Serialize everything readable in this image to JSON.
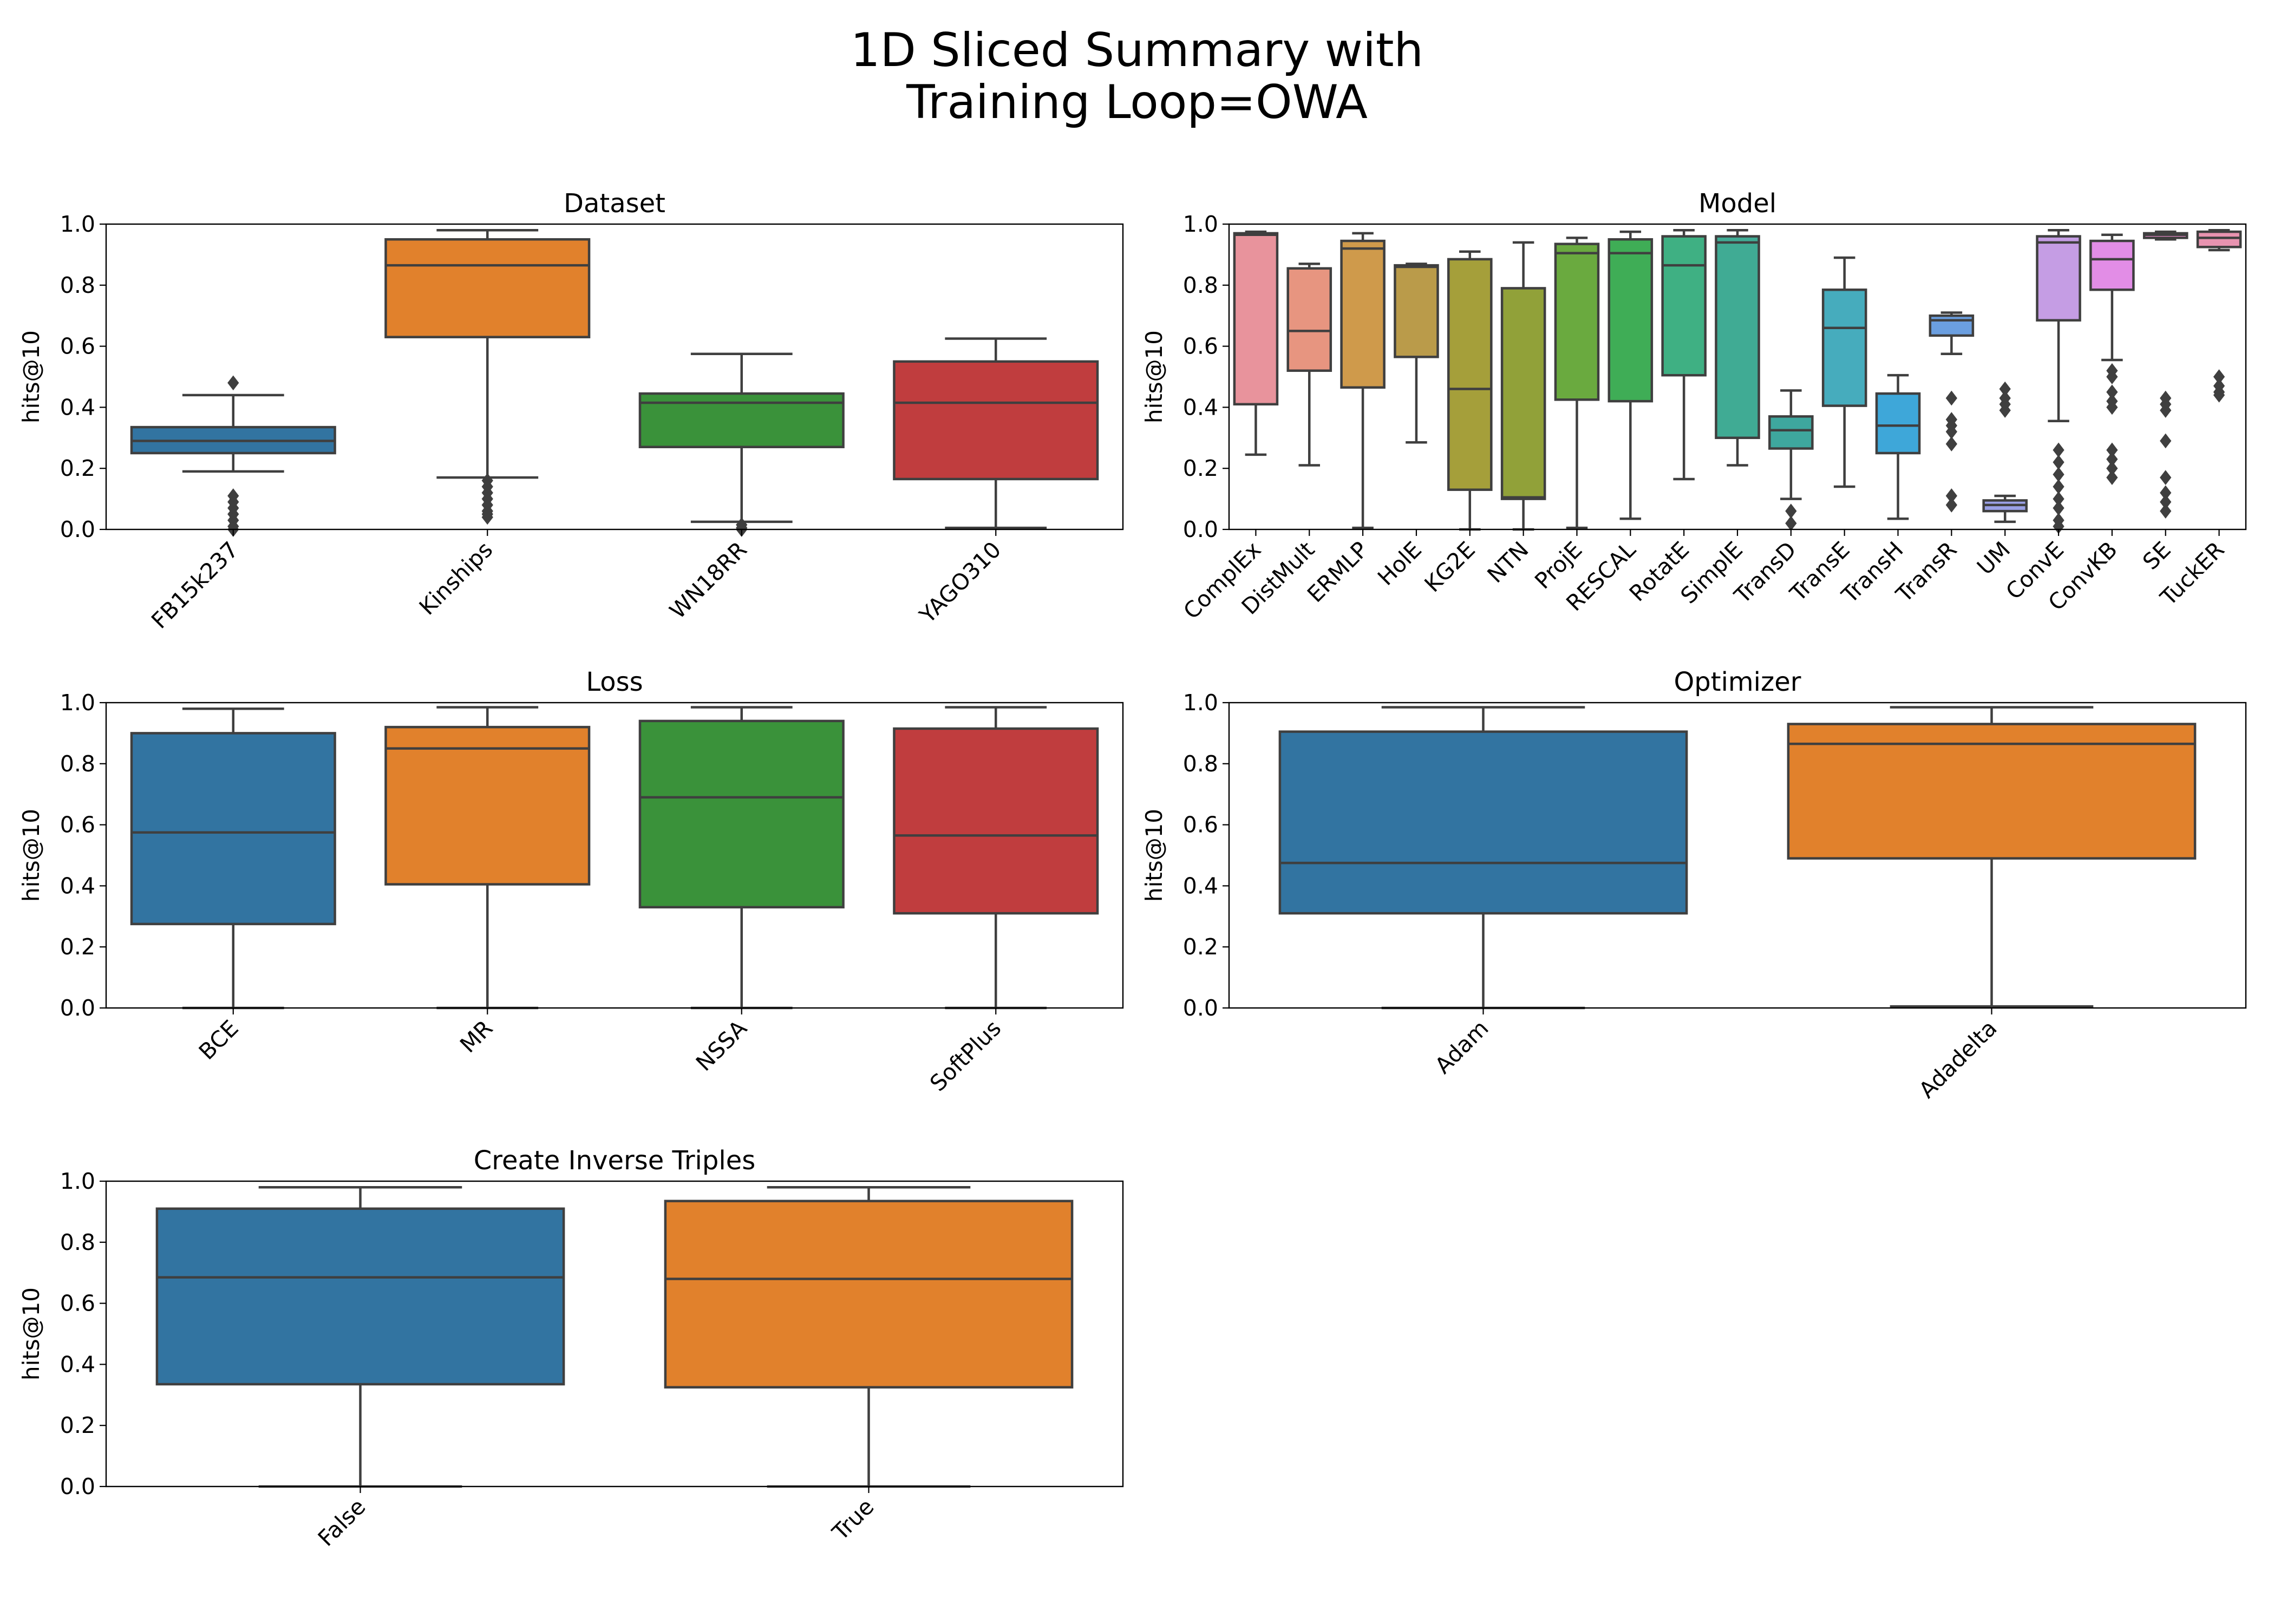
{
  "figure": {
    "title_line1": "1D Sliced Summary with",
    "title_line2": "Training Loop=OWA"
  },
  "chart_data": [
    {
      "type": "box",
      "title": "Dataset",
      "xlabel": "",
      "ylabel": "hits@10",
      "ylim": [
        0,
        1
      ],
      "yticks": [
        "0.0",
        "0.2",
        "0.4",
        "0.6",
        "0.8",
        "1.0"
      ],
      "categories": [
        "FB15k237",
        "Kinships",
        "WN18RR",
        "YAGO310"
      ],
      "colors": [
        "#3274a1",
        "#e1812c",
        "#3a923a",
        "#c03d3e"
      ],
      "boxes": [
        {
          "min": 0.19,
          "q1": 0.25,
          "median": 0.29,
          "q3": 0.335,
          "max": 0.44,
          "outliers": [
            0.48,
            0.11,
            0.09,
            0.07,
            0.05,
            0.03,
            0.01,
            0.0
          ]
        },
        {
          "min": 0.17,
          "q1": 0.63,
          "median": 0.865,
          "q3": 0.95,
          "max": 0.98,
          "outliers": [
            0.16,
            0.14,
            0.12,
            0.1,
            0.08,
            0.06,
            0.05,
            0.04
          ]
        },
        {
          "min": 0.025,
          "q1": 0.27,
          "median": 0.415,
          "q3": 0.445,
          "max": 0.575,
          "outliers": [
            0.015,
            0.005,
            0.0
          ]
        },
        {
          "min": 0.005,
          "q1": 0.165,
          "median": 0.415,
          "q3": 0.55,
          "max": 0.625,
          "outliers": []
        }
      ]
    },
    {
      "type": "box",
      "title": "Model",
      "xlabel": "",
      "ylabel": "hits@10",
      "ylim": [
        0,
        1
      ],
      "yticks": [
        "0.0",
        "0.2",
        "0.4",
        "0.6",
        "0.8",
        "1.0"
      ],
      "categories": [
        "ComplEx",
        "DistMult",
        "ERMLP",
        "HolE",
        "KG2E",
        "NTN",
        "ProjE",
        "RESCAL",
        "RotatE",
        "SimplE",
        "TransD",
        "TransE",
        "TransH",
        "TransR",
        "UM",
        "ConvE",
        "ConvKB",
        "SE",
        "TuckER"
      ],
      "colors": [
        "#e8939c",
        "#e79580",
        "#cf9a4b",
        "#ba9b4a",
        "#a59f3a",
        "#91a139",
        "#6aaa3f",
        "#3fad56",
        "#3fb083",
        "#40ab94",
        "#3ea79e",
        "#46acbd",
        "#3ea7d9",
        "#6b9fe0",
        "#9aa0e6",
        "#c59de4",
        "#e28de6",
        "#e88ac9",
        "#e893b0"
      ],
      "boxes": [
        {
          "min": 0.245,
          "q1": 0.41,
          "median": 0.965,
          "q3": 0.97,
          "max": 0.975,
          "outliers": []
        },
        {
          "min": 0.21,
          "q1": 0.52,
          "median": 0.65,
          "q3": 0.855,
          "max": 0.87,
          "outliers": []
        },
        {
          "min": 0.005,
          "q1": 0.465,
          "median": 0.92,
          "q3": 0.945,
          "max": 0.97,
          "outliers": []
        },
        {
          "min": 0.285,
          "q1": 0.565,
          "median": 0.86,
          "q3": 0.865,
          "max": 0.87,
          "outliers": []
        },
        {
          "min": 0.0,
          "q1": 0.13,
          "median": 0.46,
          "q3": 0.885,
          "max": 0.91,
          "outliers": []
        },
        {
          "min": 0.0,
          "q1": 0.1,
          "median": 0.105,
          "q3": 0.79,
          "max": 0.94,
          "outliers": []
        },
        {
          "min": 0.005,
          "q1": 0.425,
          "median": 0.905,
          "q3": 0.935,
          "max": 0.955,
          "outliers": []
        },
        {
          "min": 0.035,
          "q1": 0.42,
          "median": 0.905,
          "q3": 0.95,
          "max": 0.975,
          "outliers": []
        },
        {
          "min": 0.165,
          "q1": 0.505,
          "median": 0.865,
          "q3": 0.96,
          "max": 0.98,
          "outliers": []
        },
        {
          "min": 0.21,
          "q1": 0.3,
          "median": 0.94,
          "q3": 0.96,
          "max": 0.98,
          "outliers": []
        },
        {
          "min": 0.1,
          "q1": 0.265,
          "median": 0.325,
          "q3": 0.37,
          "max": 0.455,
          "outliers": [
            0.06,
            0.02
          ]
        },
        {
          "min": 0.14,
          "q1": 0.405,
          "median": 0.66,
          "q3": 0.785,
          "max": 0.89,
          "outliers": []
        },
        {
          "min": 0.035,
          "q1": 0.25,
          "median": 0.34,
          "q3": 0.445,
          "max": 0.505,
          "outliers": []
        },
        {
          "min": 0.575,
          "q1": 0.635,
          "median": 0.685,
          "q3": 0.7,
          "max": 0.71,
          "outliers": [
            0.43,
            0.36,
            0.34,
            0.32,
            0.28,
            0.11,
            0.08
          ]
        },
        {
          "min": 0.025,
          "q1": 0.06,
          "median": 0.08,
          "q3": 0.095,
          "max": 0.11,
          "outliers": [
            0.46,
            0.43,
            0.41,
            0.39
          ]
        },
        {
          "min": 0.355,
          "q1": 0.685,
          "median": 0.94,
          "q3": 0.96,
          "max": 0.98,
          "outliers": [
            0.26,
            0.22,
            0.18,
            0.14,
            0.1,
            0.07,
            0.03,
            0.01
          ]
        },
        {
          "min": 0.555,
          "q1": 0.785,
          "median": 0.885,
          "q3": 0.945,
          "max": 0.965,
          "outliers": [
            0.52,
            0.5,
            0.45,
            0.42,
            0.4,
            0.26,
            0.23,
            0.2,
            0.17
          ]
        },
        {
          "min": 0.95,
          "q1": 0.955,
          "median": 0.965,
          "q3": 0.97,
          "max": 0.975,
          "outliers": [
            0.43,
            0.41,
            0.39,
            0.29,
            0.17,
            0.12,
            0.09,
            0.06
          ]
        },
        {
          "min": 0.915,
          "q1": 0.925,
          "median": 0.955,
          "q3": 0.975,
          "max": 0.98,
          "outliers": [
            0.5,
            0.47,
            0.45,
            0.44
          ]
        }
      ]
    },
    {
      "type": "box",
      "title": "Loss",
      "xlabel": "",
      "ylabel": "hits@10",
      "ylim": [
        0,
        1
      ],
      "yticks": [
        "0.0",
        "0.2",
        "0.4",
        "0.6",
        "0.8",
        "1.0"
      ],
      "categories": [
        "BCE",
        "MR",
        "NSSA",
        "SoftPlus"
      ],
      "colors": [
        "#3274a1",
        "#e1812c",
        "#3a923a",
        "#c03d3e"
      ],
      "boxes": [
        {
          "min": 0.0,
          "q1": 0.275,
          "median": 0.575,
          "q3": 0.9,
          "max": 0.98,
          "outliers": []
        },
        {
          "min": 0.0,
          "q1": 0.405,
          "median": 0.85,
          "q3": 0.92,
          "max": 0.985,
          "outliers": []
        },
        {
          "min": 0.0,
          "q1": 0.33,
          "median": 0.69,
          "q3": 0.94,
          "max": 0.985,
          "outliers": []
        },
        {
          "min": 0.0,
          "q1": 0.31,
          "median": 0.565,
          "q3": 0.915,
          "max": 0.985,
          "outliers": []
        }
      ]
    },
    {
      "type": "box",
      "title": "Optimizer",
      "xlabel": "",
      "ylabel": "hits@10",
      "ylim": [
        0,
        1
      ],
      "yticks": [
        "0.0",
        "0.2",
        "0.4",
        "0.6",
        "0.8",
        "1.0"
      ],
      "categories": [
        "Adam",
        "Adadelta"
      ],
      "colors": [
        "#3274a1",
        "#e1812c"
      ],
      "boxes": [
        {
          "min": 0.0,
          "q1": 0.31,
          "median": 0.475,
          "q3": 0.905,
          "max": 0.985,
          "outliers": []
        },
        {
          "min": 0.005,
          "q1": 0.49,
          "median": 0.865,
          "q3": 0.93,
          "max": 0.985,
          "outliers": []
        }
      ]
    },
    {
      "type": "box",
      "title": "Create Inverse Triples",
      "xlabel": "",
      "ylabel": "hits@10",
      "ylim": [
        0,
        1
      ],
      "yticks": [
        "0.0",
        "0.2",
        "0.4",
        "0.6",
        "0.8",
        "1.0"
      ],
      "categories": [
        "False",
        "True"
      ],
      "colors": [
        "#3274a1",
        "#e1812c"
      ],
      "boxes": [
        {
          "min": 0.0,
          "q1": 0.335,
          "median": 0.685,
          "q3": 0.91,
          "max": 0.98,
          "outliers": []
        },
        {
          "min": 0.0,
          "q1": 0.325,
          "median": 0.68,
          "q3": 0.935,
          "max": 0.98,
          "outliers": []
        }
      ]
    }
  ]
}
